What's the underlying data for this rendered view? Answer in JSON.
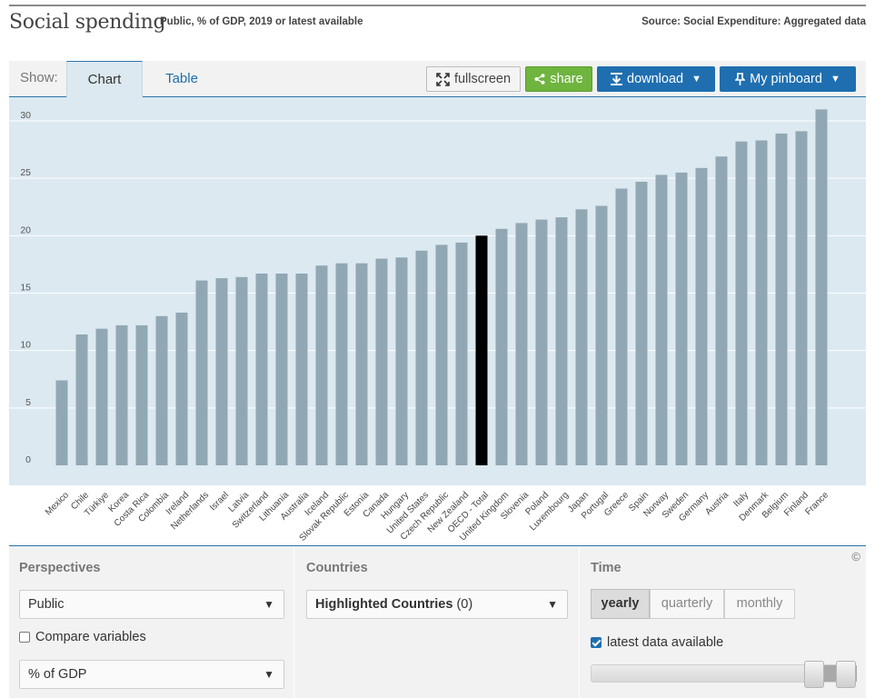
{
  "header": {
    "title": "Social spending",
    "subtitle": "Public, % of GDP, 2019 or latest available",
    "source": "Source: Social Expenditure: Aggregated data"
  },
  "tabs": {
    "show_label": "Show:",
    "chart": "Chart",
    "table": "Table"
  },
  "toolbar": {
    "fullscreen": "fullscreen",
    "share": "share",
    "download": "download",
    "pinboard": "My pinboard"
  },
  "colors": {
    "bar": "#91a8b4",
    "highlight": "#000000",
    "plot_background": "#dce9f1",
    "accent": "#1f6fb0",
    "share": "#6fb43f"
  },
  "chart_data": {
    "type": "bar",
    "title": "Social spending",
    "ylim": [
      0,
      31
    ],
    "yticks": [
      0,
      5,
      10,
      15,
      20,
      25,
      30
    ],
    "grid": true,
    "highlight": "OECD - Total",
    "categories": [
      "Mexico",
      "Chile",
      "Türkiye",
      "Korea",
      "Costa Rica",
      "Colombia",
      "Ireland",
      "Netherlands",
      "Israel",
      "Latvia",
      "Switzerland",
      "Lithuania",
      "Australia",
      "Iceland",
      "Slovak Republic",
      "Estonia",
      "Canada",
      "Hungary",
      "United States",
      "Czech Republic",
      "New Zealand",
      "OECD - Total",
      "United Kingdom",
      "Slovenia",
      "Poland",
      "Luxembourg",
      "Japan",
      "Portugal",
      "Greece",
      "Spain",
      "Norway",
      "Sweden",
      "Germany",
      "Austria",
      "Italy",
      "Denmark",
      "Belgium",
      "Finland",
      "France"
    ],
    "values": [
      7.4,
      11.4,
      11.9,
      12.2,
      12.2,
      13.0,
      13.3,
      16.1,
      16.3,
      16.4,
      16.7,
      16.7,
      16.7,
      17.4,
      17.6,
      17.6,
      18.0,
      18.1,
      18.7,
      19.2,
      19.4,
      20.0,
      20.6,
      21.1,
      21.4,
      21.6,
      22.3,
      22.6,
      24.1,
      24.7,
      25.3,
      25.5,
      25.9,
      26.9,
      28.2,
      28.3,
      28.9,
      29.1,
      31.0
    ]
  },
  "panels": {
    "perspectives": {
      "title": "Perspectives",
      "select1": "Public",
      "compare_label": "Compare variables",
      "select2": "% of GDP"
    },
    "countries": {
      "title": "Countries",
      "select_bold": "Highlighted Countries",
      "select_count": "(0)"
    },
    "time": {
      "title": "Time",
      "yearly": "yearly",
      "quarterly": "quarterly",
      "monthly": "monthly",
      "latest_label": "latest data available"
    },
    "copyright": "©"
  }
}
